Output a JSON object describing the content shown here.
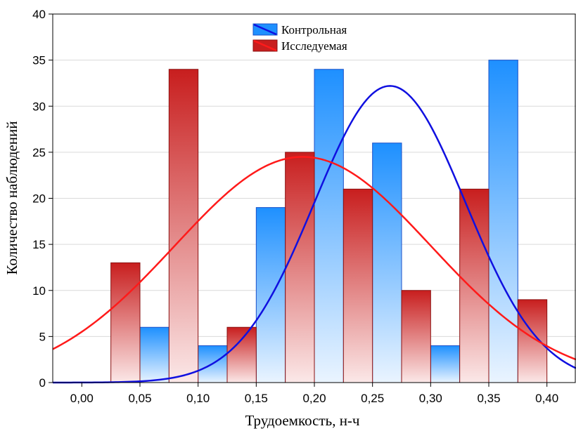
{
  "chart_data": {
    "type": "bar",
    "xlabel": "Трудоемкость, н-ч",
    "ylabel": "Количество наблюдений",
    "xlim": [
      -0.025,
      0.425
    ],
    "ylim": [
      0,
      40
    ],
    "bin_width": 0.025,
    "x_ticks": [
      {
        "value": 0.0,
        "label": "0,00"
      },
      {
        "value": 0.05,
        "label": "0,05"
      },
      {
        "value": 0.1,
        "label": "0,10"
      },
      {
        "value": 0.15,
        "label": "0,15"
      },
      {
        "value": 0.2,
        "label": "0,20"
      },
      {
        "value": 0.25,
        "label": "0,25"
      },
      {
        "value": 0.3,
        "label": "0,30"
      },
      {
        "value": 0.35,
        "label": "0,35"
      },
      {
        "value": 0.4,
        "label": "0,40"
      }
    ],
    "y_ticks": [
      {
        "value": 0,
        "label": "0"
      },
      {
        "value": 5,
        "label": "5"
      },
      {
        "value": 10,
        "label": "10"
      },
      {
        "value": 15,
        "label": "15"
      },
      {
        "value": 20,
        "label": "20"
      },
      {
        "value": 25,
        "label": "25"
      },
      {
        "value": 30,
        "label": "30"
      },
      {
        "value": 35,
        "label": "35"
      },
      {
        "value": 40,
        "label": "40"
      }
    ],
    "grid": true,
    "legend_position": "top-center",
    "series": [
      {
        "name": "Контрольная",
        "color": "#1e90ff",
        "line_color": "#1010e0",
        "bars": [
          {
            "x0": 0.05,
            "x1": 0.075,
            "value": 6
          },
          {
            "x0": 0.1,
            "x1": 0.125,
            "value": 4
          },
          {
            "x0": 0.15,
            "x1": 0.175,
            "value": 19
          },
          {
            "x0": 0.2,
            "x1": 0.225,
            "value": 34
          },
          {
            "x0": 0.25,
            "x1": 0.275,
            "value": 26
          },
          {
            "x0": 0.3,
            "x1": 0.325,
            "value": 4
          },
          {
            "x0": 0.35,
            "x1": 0.375,
            "value": 35
          }
        ],
        "curve": {
          "mean": 0.265,
          "sd": 0.065,
          "peak": 32.2
        }
      },
      {
        "name": "Исследуемая",
        "color": "#c81e1e",
        "line_color": "#ff1a1a",
        "bars": [
          {
            "x0": 0.025,
            "x1": 0.05,
            "value": 13
          },
          {
            "x0": 0.075,
            "x1": 0.1,
            "value": 34
          },
          {
            "x0": 0.125,
            "x1": 0.15,
            "value": 6
          },
          {
            "x0": 0.175,
            "x1": 0.2,
            "value": 25
          },
          {
            "x0": 0.225,
            "x1": 0.25,
            "value": 21
          },
          {
            "x0": 0.275,
            "x1": 0.3,
            "value": 10
          },
          {
            "x0": 0.325,
            "x1": 0.35,
            "value": 21
          },
          {
            "x0": 0.375,
            "x1": 0.4,
            "value": 9
          }
        ],
        "curve": {
          "mean": 0.19,
          "sd": 0.11,
          "peak": 24.5
        }
      }
    ]
  }
}
